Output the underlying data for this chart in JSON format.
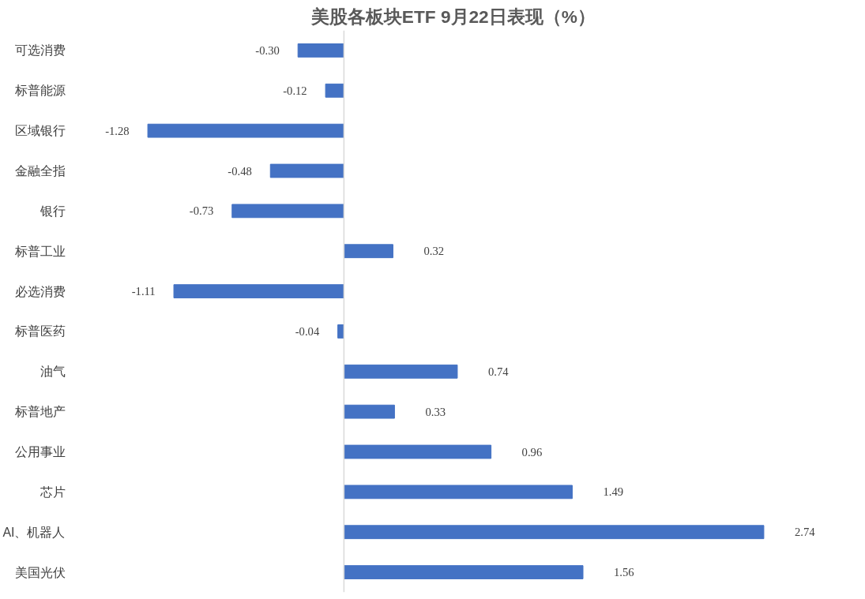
{
  "chart_data": {
    "type": "bar",
    "orientation": "horizontal",
    "title": "美股各板块ETF  9月22日表现（%）",
    "categories": [
      "可选消费",
      "标普能源",
      "区域银行",
      "金融全指",
      "银行",
      "标普工业",
      "必选消费",
      "标普医药",
      "油气",
      "标普地产",
      "公用事业",
      "芯片",
      "AI、机器人",
      "美国光伏"
    ],
    "values": [
      -0.3,
      -0.12,
      -1.28,
      -0.48,
      -0.73,
      0.32,
      -1.11,
      -0.04,
      0.74,
      0.33,
      0.96,
      1.49,
      2.74,
      1.56
    ],
    "value_labels": [
      "-0.30",
      "-0.12",
      "-1.28",
      "-0.48",
      "-0.73",
      "0.32",
      "-1.11",
      "-0.04",
      "0.74",
      "0.33",
      "0.96",
      "1.49",
      "2.74",
      "1.56"
    ],
    "color": "#4472c4",
    "grid": false
  }
}
